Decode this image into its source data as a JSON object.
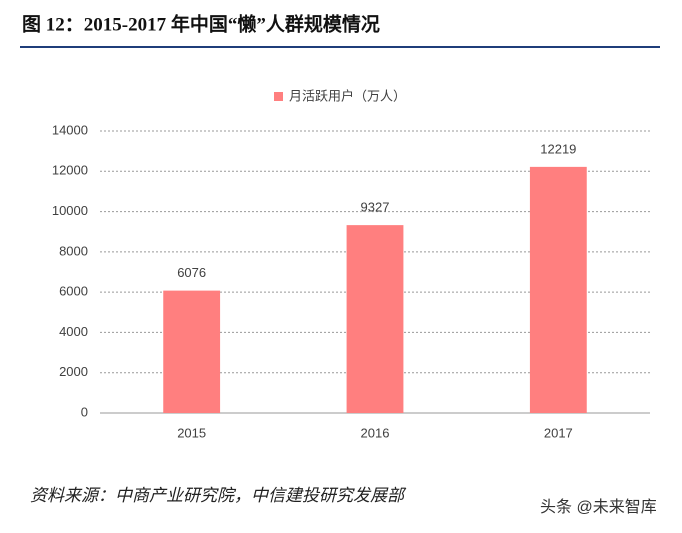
{
  "chart_data": {
    "type": "bar",
    "title": "图 12：2015-2017 年中国“懒”人群规模情况",
    "categories": [
      "2015",
      "2016",
      "2017"
    ],
    "series": [
      {
        "name": "月活跃用户（万人）",
        "color": "#ff7f7f",
        "values": [
          6076,
          9327,
          12219
        ]
      }
    ],
    "ylim": [
      0,
      14000
    ],
    "yticks": [
      0,
      2000,
      4000,
      6000,
      8000,
      10000,
      12000,
      14000
    ],
    "grid": true,
    "legend": "top"
  },
  "source": "资料来源：中商产业研究院，中信建投研究发展部",
  "watermark": "头条 @未来智库"
}
